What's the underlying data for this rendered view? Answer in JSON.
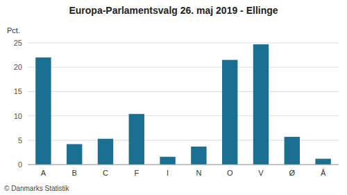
{
  "chart_data": {
    "type": "bar",
    "title": "Europa-Parlamentsvalg 26. maj 2019 - Ellinge",
    "ylabel": "Pct.",
    "footer": "© Danmarks Statistik",
    "categories": [
      "A",
      "B",
      "C",
      "F",
      "I",
      "N",
      "O",
      "V",
      "Ø",
      "Å"
    ],
    "values": [
      22.0,
      4.2,
      5.3,
      10.4,
      1.6,
      3.7,
      21.5,
      24.7,
      5.7,
      1.2
    ],
    "color": "#1a7090",
    "ylim": [
      0,
      25
    ],
    "yticks": [
      0,
      5,
      10,
      15,
      20,
      25
    ],
    "grid": true
  }
}
